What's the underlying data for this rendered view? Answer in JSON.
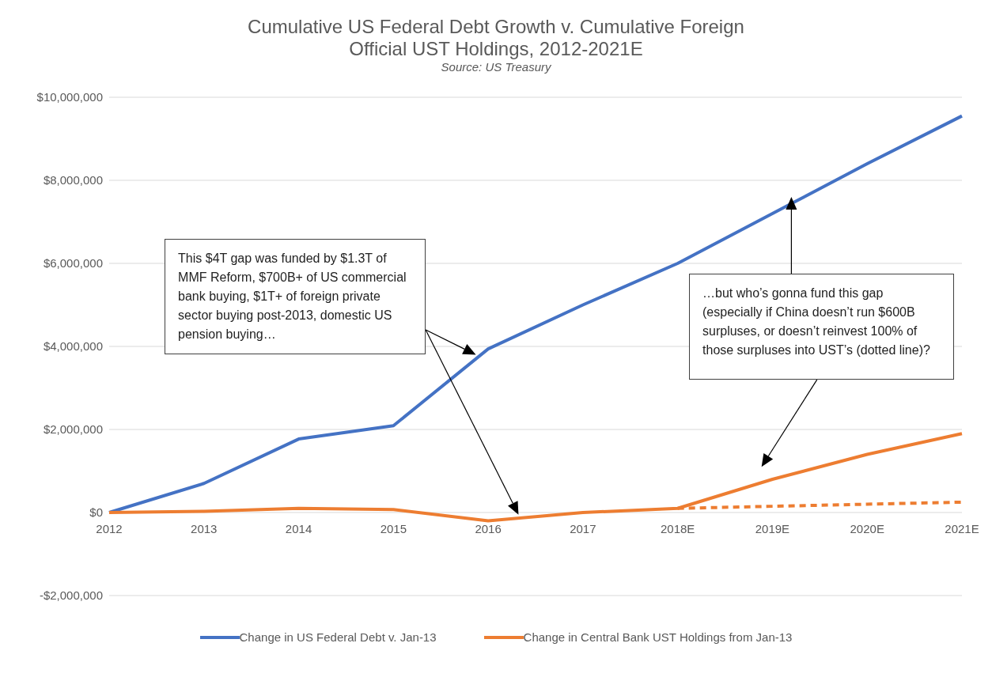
{
  "chart_data": {
    "type": "line",
    "title": "Cumulative US Federal Debt Growth v. Cumulative Foreign Official UST Holdings, 2012-2021E",
    "subtitle": "Source: US Treasury",
    "categories": [
      "2012",
      "2013",
      "2014",
      "2015",
      "2016",
      "2017",
      "2018E",
      "2019E",
      "2020E",
      "2021E"
    ],
    "series": [
      {
        "name": "Change in US Federal Debt v. Jan-13",
        "color": "#4472c4",
        "values": [
          0,
          700000,
          1770000,
          2090000,
          3940000,
          5000000,
          6000000,
          7200000,
          8400000,
          9550000
        ]
      },
      {
        "name": "Change in Central Bank UST Holdings from Jan-13",
        "color": "#ed7d31",
        "values": [
          0,
          30000,
          100000,
          70000,
          -200000,
          0,
          100000,
          800000,
          1400000,
          1900000
        ]
      },
      {
        "color": "#ed7d31",
        "line_style": "dashed",
        "values": [
          null,
          null,
          null,
          null,
          null,
          null,
          100000,
          150000,
          200000,
          250000
        ]
      }
    ],
    "ylim": [
      -2000000,
      10000000
    ],
    "yticks": [
      {
        "value": -2000000,
        "label": "-$2,000,000"
      },
      {
        "value": 0,
        "label": "$0"
      },
      {
        "value": 2000000,
        "label": "$2,000,000"
      },
      {
        "value": 4000000,
        "label": "$4,000,000"
      },
      {
        "value": 6000000,
        "label": "$6,000,000"
      },
      {
        "value": 8000000,
        "label": "$8,000,000"
      },
      {
        "value": 10000000,
        "label": "$10,000,000"
      }
    ],
    "grid": "y",
    "legend": "bottom",
    "marker": "none",
    "line_style": "solid",
    "annotations": [
      "This $4T gap was funded by $1.3T of MMF Reform, $700B+ of US commercial bank buying, $1T+ of foreign private sector buying post-2013, domestic US pension buying…",
      "…but who’s gonna fund this gap (especially if China doesn’t run $600B surpluses, or doesn’t reinvest 100% of those surpluses into UST’s (dotted line)?"
    ]
  }
}
